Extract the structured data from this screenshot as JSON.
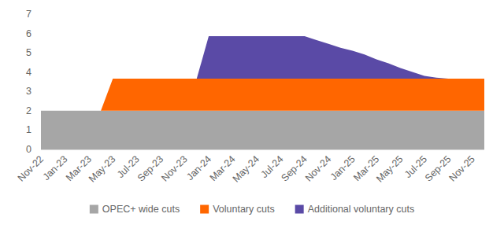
{
  "chart_data": {
    "type": "area",
    "stacked": true,
    "grid": false,
    "legend": "bottom",
    "categories": [
      "Nov-22",
      null,
      "Jan-23",
      null,
      "Mar-23",
      null,
      "May-23",
      null,
      "Jul-23",
      null,
      "Sep-23",
      null,
      "Nov-23",
      null,
      "Jan-24",
      null,
      "Mar-24",
      null,
      "May-24",
      null,
      "Jul-24",
      null,
      "Sep-24",
      null,
      "Nov-24",
      null,
      "Jan-25",
      null,
      "Mar-25",
      null,
      "May-25",
      null,
      "Jul-25",
      null,
      "Sep-25",
      null,
      "Nov-25",
      null
    ],
    "series": [
      {
        "name": "OPEC+ wide cuts",
        "color": "#a6a6a6",
        "values": [
          2,
          2,
          2,
          2,
          2,
          2,
          2,
          2,
          2,
          2,
          2,
          2,
          2,
          2,
          2,
          2,
          2,
          2,
          2,
          2,
          2,
          2,
          2,
          2,
          2,
          2,
          2,
          2,
          2,
          2,
          2,
          2,
          2,
          2,
          2,
          2,
          2,
          2
        ]
      },
      {
        "name": "Voluntary cuts",
        "color": "#ff6600",
        "values": [
          0,
          0,
          0,
          0,
          0,
          0,
          1.66,
          1.66,
          1.66,
          1.66,
          1.66,
          1.66,
          1.66,
          1.66,
          1.66,
          1.66,
          1.66,
          1.66,
          1.66,
          1.66,
          1.66,
          1.66,
          1.66,
          1.66,
          1.66,
          1.66,
          1.66,
          1.66,
          1.66,
          1.66,
          1.66,
          1.66,
          1.66,
          1.66,
          1.66,
          1.66,
          1.66,
          1.66
        ]
      },
      {
        "name": "Additional voluntary cuts",
        "color": "#5a4aa6",
        "values": [
          0,
          0,
          0,
          0,
          0,
          0,
          0,
          0,
          0,
          0,
          0,
          0,
          0,
          0,
          2.2,
          2.2,
          2.2,
          2.2,
          2.2,
          2.2,
          2.2,
          2.2,
          2.2,
          2.0,
          1.8,
          1.6,
          1.45,
          1.25,
          1.0,
          0.8,
          0.55,
          0.35,
          0.15,
          0.05,
          0,
          0,
          0,
          0
        ]
      }
    ],
    "ylim": [
      0,
      7
    ],
    "yticks": [
      0,
      1,
      2,
      3,
      4,
      5,
      6,
      7
    ]
  }
}
